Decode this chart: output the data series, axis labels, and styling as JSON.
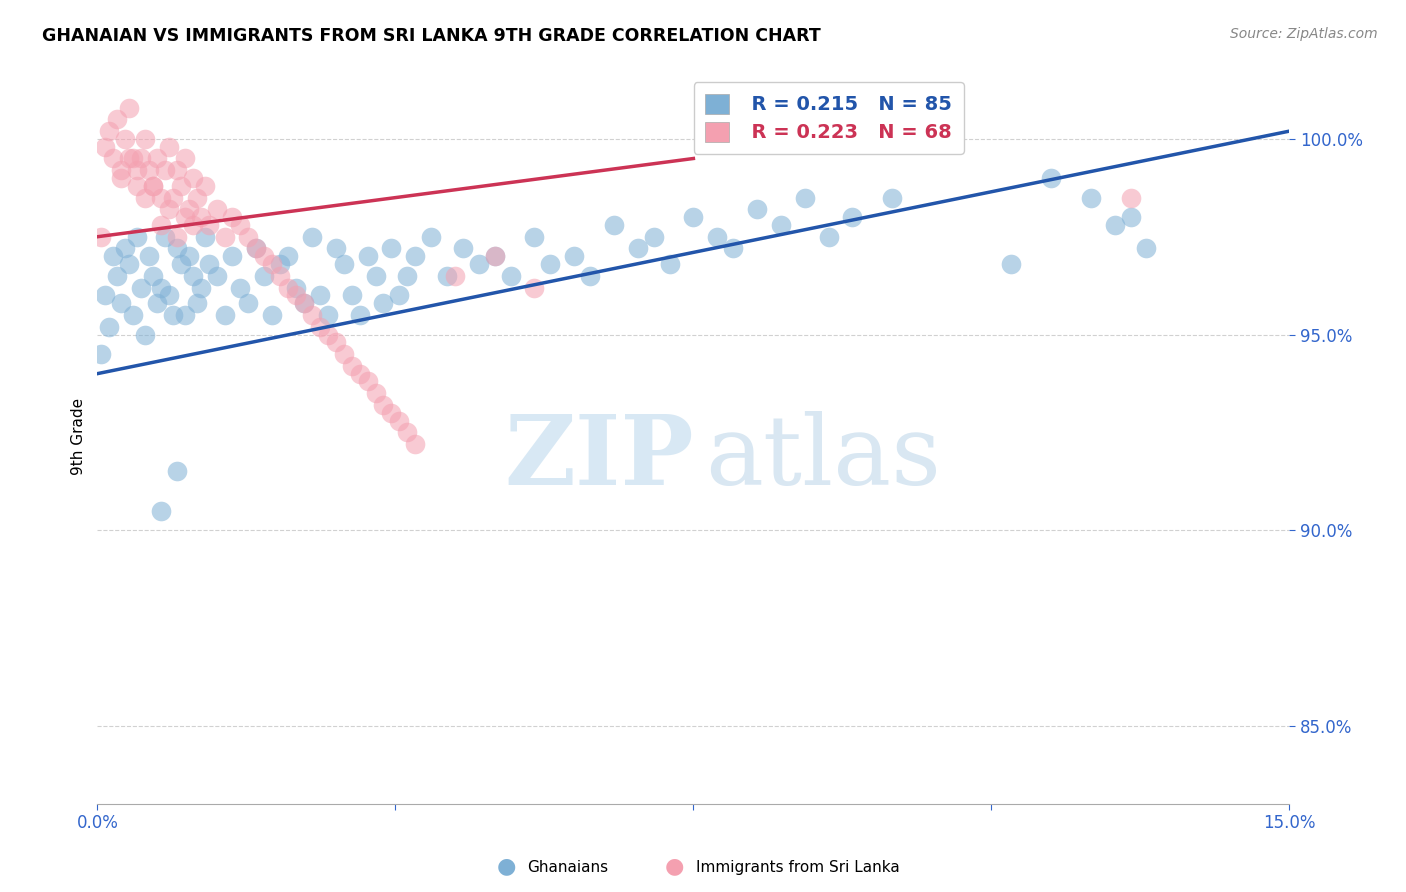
{
  "title": "GHANAIAN VS IMMIGRANTS FROM SRI LANKA 9TH GRADE CORRELATION CHART",
  "source": "Source: ZipAtlas.com",
  "ylabel": "9th Grade",
  "ytick_values": [
    85.0,
    90.0,
    95.0,
    100.0
  ],
  "ytick_labels": [
    "85.0%",
    "90.0%",
    "95.0%",
    "100.0%"
  ],
  "xmin": 0.0,
  "xmax": 15.0,
  "ymin": 83.0,
  "ymax": 101.8,
  "legend_blue_r": "R = 0.215",
  "legend_blue_n": "N = 85",
  "legend_pink_r": "R = 0.223",
  "legend_pink_n": "N = 68",
  "blue_color": "#7EB0D5",
  "pink_color": "#F4A0B0",
  "blue_line_color": "#2255AA",
  "pink_line_color": "#CC3355",
  "blue_scatter_x": [
    0.05,
    0.1,
    0.15,
    0.2,
    0.25,
    0.3,
    0.35,
    0.4,
    0.45,
    0.5,
    0.55,
    0.6,
    0.65,
    0.7,
    0.75,
    0.8,
    0.85,
    0.9,
    0.95,
    1.0,
    1.05,
    1.1,
    1.15,
    1.2,
    1.25,
    1.3,
    1.35,
    1.4,
    1.5,
    1.6,
    1.7,
    1.8,
    1.9,
    2.0,
    2.1,
    2.2,
    2.3,
    2.4,
    2.5,
    2.6,
    2.7,
    2.8,
    2.9,
    3.0,
    3.1,
    3.2,
    3.3,
    3.4,
    3.5,
    3.6,
    3.7,
    3.8,
    3.9,
    4.0,
    4.2,
    4.4,
    4.6,
    4.8,
    5.0,
    5.2,
    5.5,
    5.7,
    6.0,
    6.2,
    6.5,
    6.8,
    7.0,
    7.2,
    7.5,
    7.8,
    8.0,
    8.3,
    8.6,
    8.9,
    9.2,
    9.5,
    10.0,
    11.5,
    12.0,
    12.5,
    12.8,
    13.0,
    13.2,
    1.0,
    0.8
  ],
  "blue_scatter_y": [
    94.5,
    96.0,
    95.2,
    97.0,
    96.5,
    95.8,
    97.2,
    96.8,
    95.5,
    97.5,
    96.2,
    95.0,
    97.0,
    96.5,
    95.8,
    96.2,
    97.5,
    96.0,
    95.5,
    97.2,
    96.8,
    95.5,
    97.0,
    96.5,
    95.8,
    96.2,
    97.5,
    96.8,
    96.5,
    95.5,
    97.0,
    96.2,
    95.8,
    97.2,
    96.5,
    95.5,
    96.8,
    97.0,
    96.2,
    95.8,
    97.5,
    96.0,
    95.5,
    97.2,
    96.8,
    96.0,
    95.5,
    97.0,
    96.5,
    95.8,
    97.2,
    96.0,
    96.5,
    97.0,
    97.5,
    96.5,
    97.2,
    96.8,
    97.0,
    96.5,
    97.5,
    96.8,
    97.0,
    96.5,
    97.8,
    97.2,
    97.5,
    96.8,
    98.0,
    97.5,
    97.2,
    98.2,
    97.8,
    98.5,
    97.5,
    98.0,
    98.5,
    96.8,
    99.0,
    98.5,
    97.8,
    98.0,
    97.2,
    91.5,
    90.5
  ],
  "pink_scatter_x": [
    0.05,
    0.1,
    0.15,
    0.2,
    0.25,
    0.3,
    0.35,
    0.4,
    0.45,
    0.5,
    0.55,
    0.6,
    0.65,
    0.7,
    0.75,
    0.8,
    0.85,
    0.9,
    0.95,
    1.0,
    1.05,
    1.1,
    1.15,
    1.2,
    1.25,
    1.3,
    1.35,
    1.4,
    1.5,
    1.6,
    1.7,
    1.8,
    1.9,
    2.0,
    2.1,
    2.2,
    2.3,
    2.4,
    2.5,
    2.6,
    2.7,
    2.8,
    2.9,
    3.0,
    3.1,
    3.2,
    3.3,
    3.4,
    3.5,
    3.6,
    3.7,
    3.8,
    3.9,
    4.0,
    4.5,
    5.0,
    5.5,
    0.3,
    0.4,
    0.5,
    0.6,
    0.7,
    0.8,
    0.9,
    1.0,
    1.1,
    1.2,
    13.0
  ],
  "pink_scatter_y": [
    97.5,
    99.8,
    100.2,
    99.5,
    100.5,
    99.2,
    100.0,
    100.8,
    99.5,
    98.8,
    99.5,
    100.0,
    99.2,
    98.8,
    99.5,
    98.5,
    99.2,
    99.8,
    98.5,
    99.2,
    98.8,
    99.5,
    98.2,
    99.0,
    98.5,
    98.0,
    98.8,
    97.8,
    98.2,
    97.5,
    98.0,
    97.8,
    97.5,
    97.2,
    97.0,
    96.8,
    96.5,
    96.2,
    96.0,
    95.8,
    95.5,
    95.2,
    95.0,
    94.8,
    94.5,
    94.2,
    94.0,
    93.8,
    93.5,
    93.2,
    93.0,
    92.8,
    92.5,
    92.2,
    96.5,
    97.0,
    96.2,
    99.0,
    99.5,
    99.2,
    98.5,
    98.8,
    97.8,
    98.2,
    97.5,
    98.0,
    97.8,
    98.5
  ],
  "blue_line_x": [
    0.0,
    15.0
  ],
  "blue_line_y": [
    94.0,
    100.2
  ],
  "pink_line_x": [
    0.0,
    7.5
  ],
  "pink_line_y": [
    97.5,
    99.5
  ]
}
